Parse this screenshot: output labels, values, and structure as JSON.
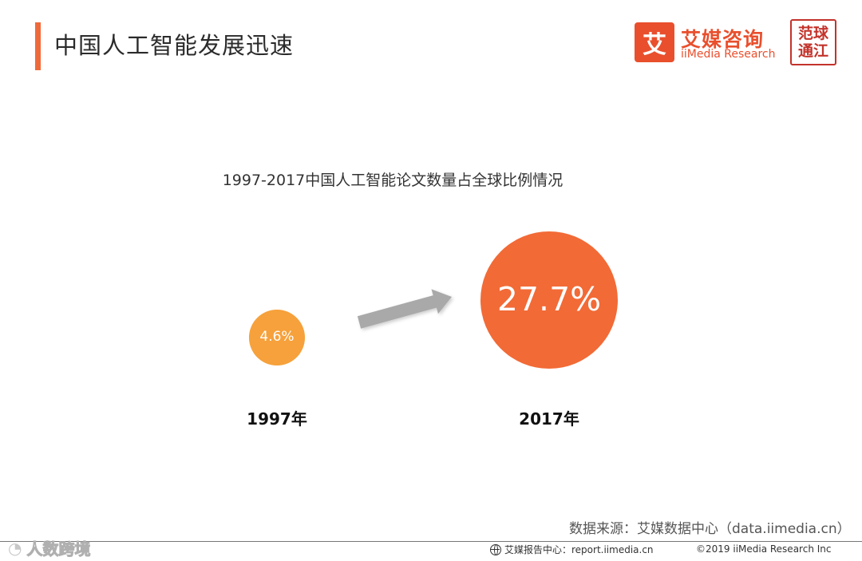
{
  "header": {
    "title": "中国人工智能发展迅速",
    "accent_color": "#ef6a3a"
  },
  "logo": {
    "mark": "艾",
    "name_cn": "艾媒咨询",
    "name_en": "iiMedia Research",
    "color": "#e94f2d"
  },
  "seal": {
    "text": "范球通江",
    "color": "#c3332b"
  },
  "chart_data": {
    "type": "bubble-comparison",
    "title": "1997-2017中国人工智能论文数量占全球比例情况",
    "categories": [
      "1997年",
      "2017年"
    ],
    "values": [
      4.6,
      27.7
    ],
    "value_labels": [
      "4.6%",
      "27.7%"
    ],
    "unit": "%",
    "colors": [
      "#f6a13b",
      "#f26a36"
    ],
    "arrow_color": "#a9a9a9"
  },
  "source": "数据来源：艾媒数据中心（data.iimedia.cn）",
  "footer": {
    "watermark": "人数跨境",
    "watermark_icon": "weibo-icon",
    "report_label": "艾媒报告中心：report.iimedia.cn",
    "report_icon": "globe-icon",
    "copyright": "©2019  iiMedia Research Inc"
  }
}
